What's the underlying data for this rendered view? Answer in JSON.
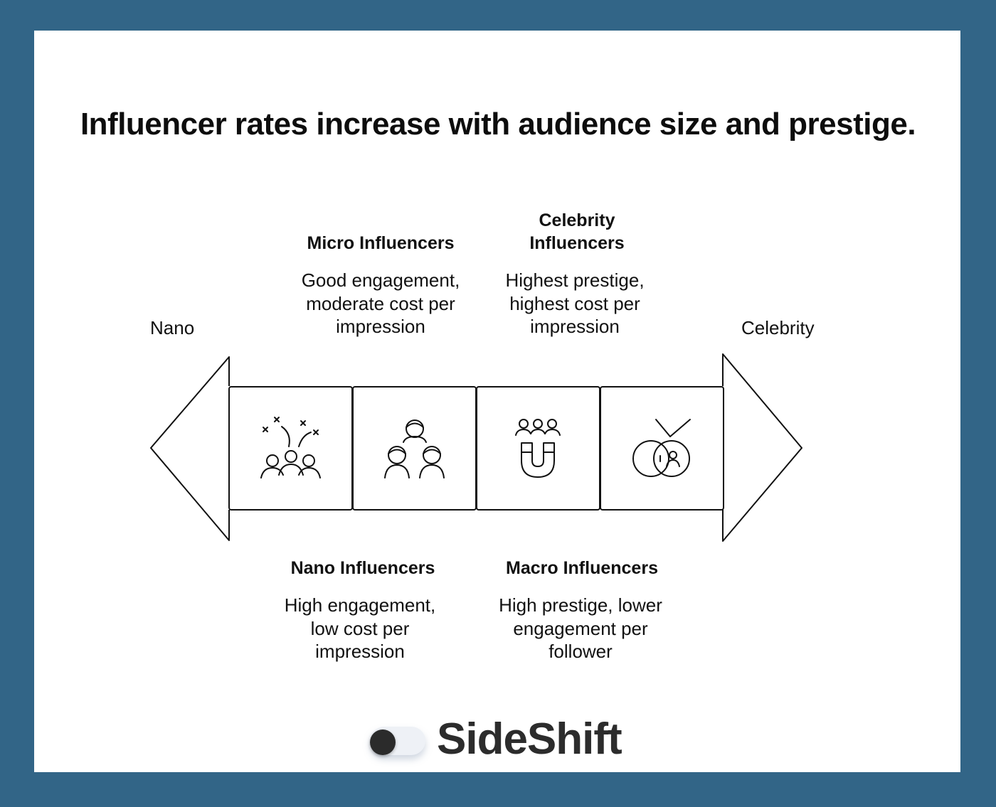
{
  "title": "Influencer rates increase with audience size and prestige.",
  "ends": {
    "left": "Nano",
    "right": "Celebrity"
  },
  "stages": [
    {
      "id": "nano",
      "title": "Nano Influencers",
      "desc_lines": [
        "High engagement,",
        "low cost per",
        "impression"
      ],
      "position": "below",
      "icon": "celebrating-crowd-icon"
    },
    {
      "id": "micro",
      "title": "Micro Influencers",
      "desc_lines": [
        "Good engagement,",
        "moderate cost per",
        "impression"
      ],
      "position": "above",
      "icon": "group-of-people-icon"
    },
    {
      "id": "macro",
      "title": "Macro Influencers",
      "desc_lines": [
        "High prestige, lower",
        "engagement per",
        "follower"
      ],
      "position": "below",
      "icon": "magnet-attracting-people-icon"
    },
    {
      "id": "celebrity",
      "title_lines": [
        "Celebrity",
        "Influencers"
      ],
      "desc_lines": [
        "Highest prestige,",
        "highest cost per",
        "impression"
      ],
      "position": "above",
      "icon": "medal-person-icon"
    }
  ],
  "brand": {
    "name": "SideShift",
    "icon": "toggle-switch-icon"
  },
  "colors": {
    "background": "#326587",
    "card": "#ffffff",
    "stroke": "#111111"
  }
}
